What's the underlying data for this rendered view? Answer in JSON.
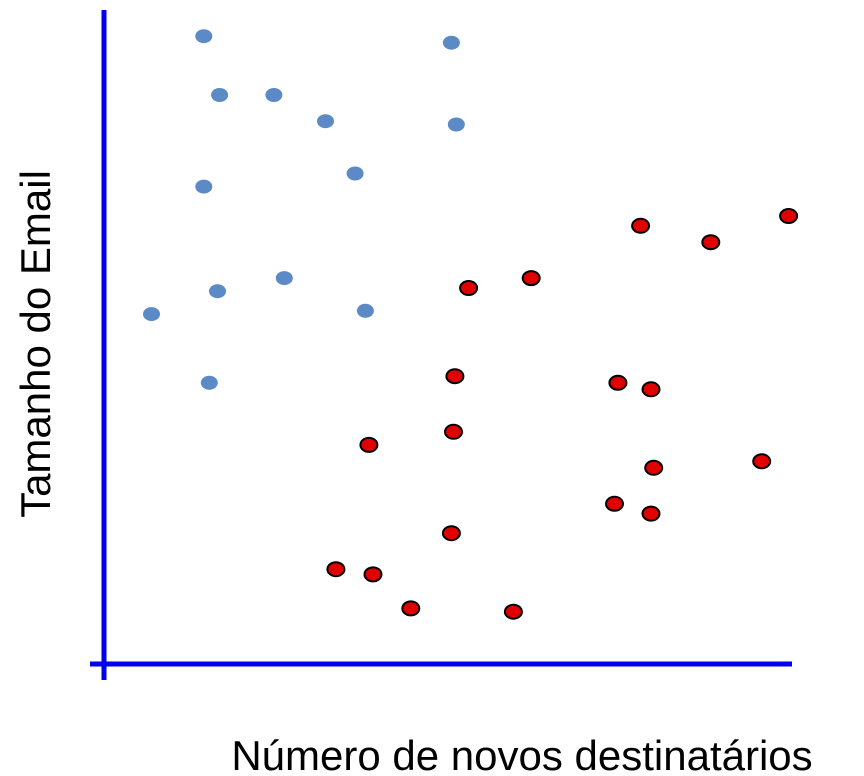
{
  "chart_data": {
    "type": "scatter",
    "title": "",
    "xlabel": "Número de novos destinatários",
    "ylabel": "Tamanho do Email",
    "xlim": [
      0,
      10
    ],
    "ylim": [
      0,
      10
    ],
    "grid": false,
    "legend": "none",
    "ticks": false,
    "axis_color": "#0000ee",
    "series": [
      {
        "color": "#5b8ac6",
        "edge_color": "#5b8ac6",
        "points": [
          {
            "x": 1.45,
            "y": 9.6
          },
          {
            "x": 5.05,
            "y": 9.5
          },
          {
            "x": 1.68,
            "y": 8.7
          },
          {
            "x": 2.47,
            "y": 8.7
          },
          {
            "x": 3.22,
            "y": 8.3
          },
          {
            "x": 5.12,
            "y": 8.25
          },
          {
            "x": 3.65,
            "y": 7.5
          },
          {
            "x": 1.45,
            "y": 7.3
          },
          {
            "x": 2.62,
            "y": 5.9
          },
          {
            "x": 1.65,
            "y": 5.7
          },
          {
            "x": 0.69,
            "y": 5.35
          },
          {
            "x": 3.8,
            "y": 5.4
          },
          {
            "x": 1.53,
            "y": 4.3
          }
        ]
      },
      {
        "color": "#e00000",
        "edge_color": "#000000",
        "points": [
          {
            "x": 7.8,
            "y": 6.7
          },
          {
            "x": 8.82,
            "y": 6.45
          },
          {
            "x": 9.95,
            "y": 6.85
          },
          {
            "x": 5.3,
            "y": 5.75
          },
          {
            "x": 6.21,
            "y": 5.9
          },
          {
            "x": 5.1,
            "y": 4.4
          },
          {
            "x": 7.47,
            "y": 4.3
          },
          {
            "x": 7.95,
            "y": 4.2
          },
          {
            "x": 5.08,
            "y": 3.55
          },
          {
            "x": 3.85,
            "y": 3.35
          },
          {
            "x": 7.99,
            "y": 3.0
          },
          {
            "x": 9.56,
            "y": 3.1
          },
          {
            "x": 7.42,
            "y": 2.45
          },
          {
            "x": 7.95,
            "y": 2.3
          },
          {
            "x": 5.05,
            "y": 2.0
          },
          {
            "x": 3.37,
            "y": 1.45
          },
          {
            "x": 3.91,
            "y": 1.37
          },
          {
            "x": 4.46,
            "y": 0.85
          },
          {
            "x": 5.95,
            "y": 0.8
          }
        ]
      }
    ]
  }
}
